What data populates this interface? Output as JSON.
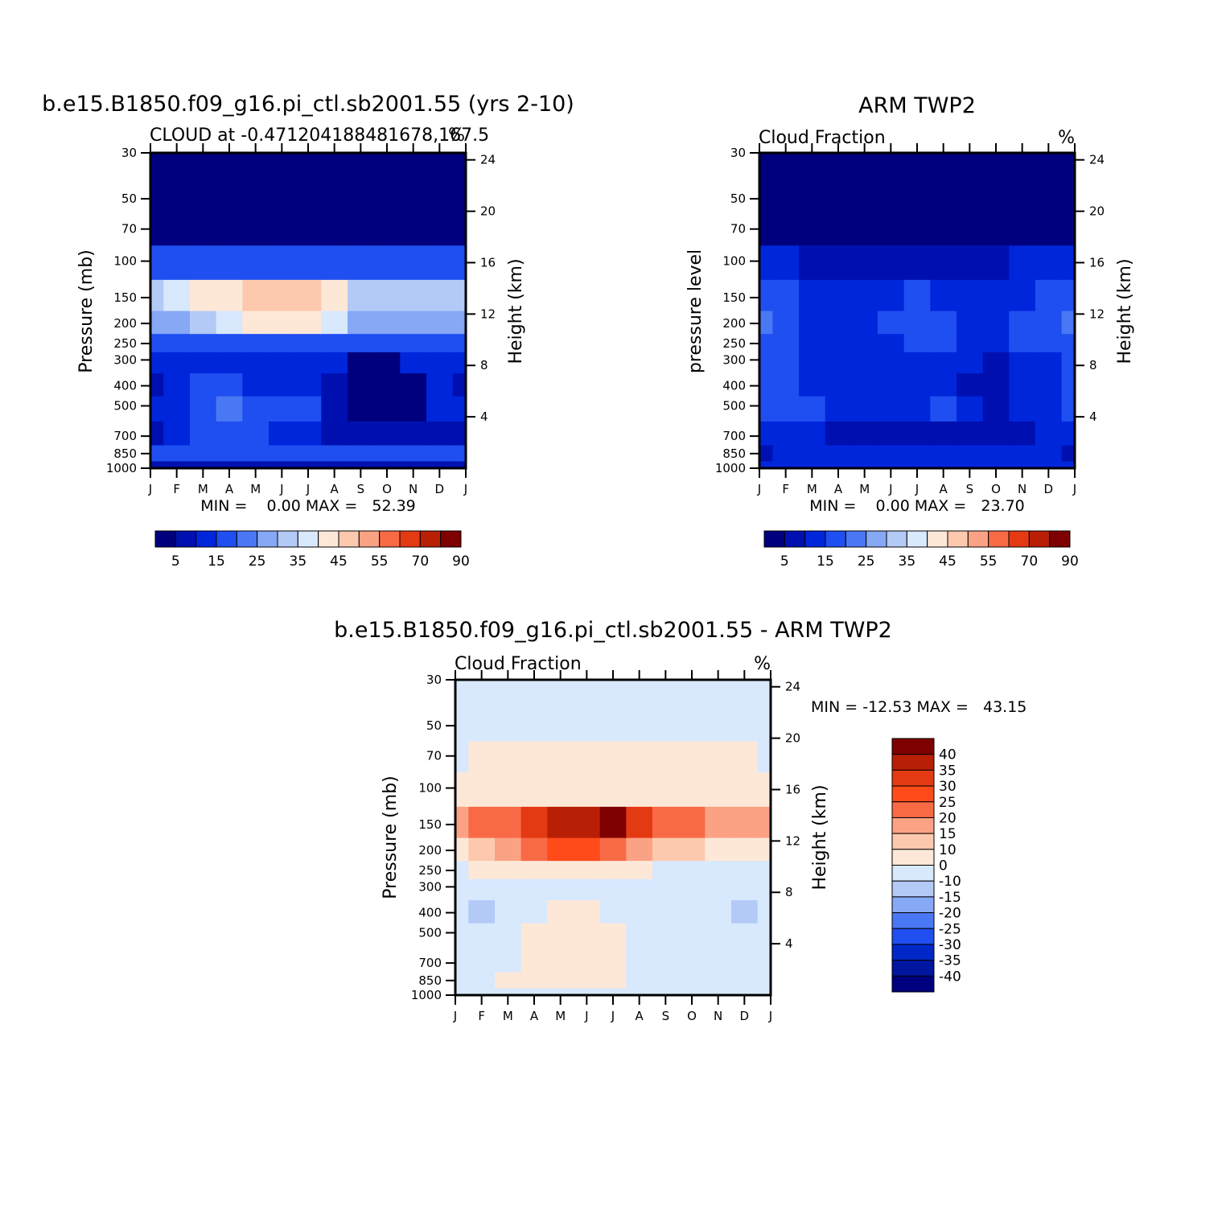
{
  "colors": {
    "sequential": [
      "#00007f",
      "#0010b0",
      "#0026dc",
      "#1f4ff0",
      "#4a78f5",
      "#86a8f5",
      "#b3caf7",
      "#d8e8fd",
      "#fde8d8",
      "#fcc9ae",
      "#fba284",
      "#f86a45",
      "#e43a14",
      "#b81f05",
      "#7f0000"
    ],
    "diverging": [
      "#00007f",
      "#0015a0",
      "#0027c8",
      "#1f4ff0",
      "#4a78f5",
      "#86a8f5",
      "#b3caf7",
      "#d8e8fd",
      "#fde8d8",
      "#fcc9ae",
      "#fba284",
      "#f86a45",
      "#ff4a1a",
      "#e43a14",
      "#b81f05",
      "#7f0000"
    ]
  },
  "panel_model": {
    "title": "b.e15.B1850.f09_g16.pi_ctl.sb2001.55 (yrs 2-10)",
    "subtitle_left": "CLOUD at -0.471204188481678,167.5",
    "subtitle_right": "%",
    "ylabel": "Pressure (mb)",
    "ylabel_right": "Height (km)",
    "min_max": "MIN =    0.00 MAX =   52.39"
  },
  "panel_obs": {
    "title": "ARM TWP2",
    "subtitle_left": "Cloud Fraction",
    "subtitle_right": "%",
    "ylabel": "pressure level",
    "ylabel_right": "Height (km)",
    "min_max": "MIN =    0.00 MAX =   23.70"
  },
  "panel_diff": {
    "title": "b.e15.B1850.f09_g16.pi_ctl.sb2001.55 - ARM TWP2",
    "subtitle_left": "Cloud Fraction",
    "subtitle_right": "%",
    "ylabel": "Pressure (mb)",
    "ylabel_right": "Height (km)",
    "min_max": "MIN = -12.53 MAX =   43.15"
  },
  "chart_data": [
    {
      "type": "heatmap",
      "title": "b.e15.B1850.f09_g16.pi_ctl.sb2001.55 (yrs 2-10)",
      "variable": "CLOUD",
      "units": "%",
      "x": [
        "J",
        "F",
        "M",
        "A",
        "M",
        "J",
        "J",
        "A",
        "S",
        "O",
        "N",
        "D",
        "J"
      ],
      "y": [
        1000,
        850,
        700,
        500,
        400,
        300,
        250,
        200,
        150,
        100,
        70,
        50,
        30
      ],
      "yticks_pressure": [
        30,
        50,
        70,
        100,
        150,
        200,
        250,
        300,
        400,
        500,
        700,
        850,
        1000
      ],
      "yticks_height_km": [
        4,
        8,
        12,
        16,
        20,
        24
      ],
      "ylog": true,
      "levels": [
        5,
        10,
        15,
        20,
        25,
        30,
        35,
        40,
        45,
        50,
        55,
        60,
        70,
        80,
        90
      ],
      "colorbar_labels": [
        "5",
        "15",
        "25",
        "35",
        "45",
        "55",
        "70",
        "90"
      ],
      "min": 0.0,
      "max": 52.39,
      "z": [
        [
          8,
          8,
          8,
          8,
          8,
          8,
          8,
          8,
          8,
          8,
          8,
          8,
          8
        ],
        [
          15,
          15,
          15,
          15,
          15,
          15,
          15,
          15,
          15,
          15,
          15,
          15,
          15
        ],
        [
          6,
          13,
          15,
          15,
          15,
          14,
          13,
          6,
          6,
          6,
          6,
          6,
          6
        ],
        [
          10,
          13,
          15,
          21,
          16,
          19,
          15,
          6,
          4,
          4,
          4,
          11,
          10
        ],
        [
          6,
          11,
          15,
          16,
          14,
          14,
          14,
          6,
          4,
          4,
          4,
          10,
          6
        ],
        [
          14,
          14,
          11,
          11,
          11,
          11,
          11,
          11,
          4,
          4,
          11,
          14,
          14
        ],
        [
          15,
          15,
          17,
          17,
          18,
          18,
          18,
          17,
          15,
          15,
          15,
          15,
          15
        ],
        [
          26,
          28,
          33,
          38,
          41,
          41,
          41,
          38,
          27,
          26,
          26,
          26,
          26
        ],
        [
          32,
          36,
          40,
          43,
          47,
          49,
          47,
          44,
          34,
          32,
          33,
          30,
          30
        ],
        [
          17,
          17,
          17,
          17,
          18,
          18,
          18,
          17,
          17,
          17,
          17,
          17,
          17
        ],
        [
          2,
          2,
          2,
          2,
          2,
          2,
          2,
          2,
          2,
          2,
          2,
          2,
          2
        ],
        [
          0,
          0,
          0,
          0,
          0,
          0,
          0,
          0,
          0,
          0,
          0,
          0,
          0
        ],
        [
          0,
          0,
          0,
          0,
          0,
          0,
          0,
          0,
          0,
          0,
          0,
          0,
          0
        ]
      ]
    },
    {
      "type": "heatmap",
      "title": "ARM TWP2",
      "variable": "Cloud Fraction",
      "units": "%",
      "x": [
        "J",
        "F",
        "M",
        "A",
        "M",
        "J",
        "J",
        "A",
        "S",
        "O",
        "N",
        "D",
        "J"
      ],
      "y": [
        1000,
        850,
        700,
        500,
        400,
        300,
        250,
        200,
        150,
        100,
        70,
        50,
        30
      ],
      "yticks_pressure": [
        30,
        50,
        70,
        100,
        150,
        200,
        250,
        300,
        400,
        500,
        700,
        850,
        1000
      ],
      "yticks_height_km": [
        4,
        8,
        12,
        16,
        20,
        24
      ],
      "ylog": true,
      "levels": [
        5,
        10,
        15,
        20,
        25,
        30,
        35,
        40,
        45,
        50,
        55,
        60,
        70,
        80,
        90
      ],
      "colorbar_labels": [
        "5",
        "15",
        "25",
        "35",
        "45",
        "55",
        "70",
        "90"
      ],
      "min": 0.0,
      "max": 23.7,
      "z": [
        [
          10,
          10,
          10,
          10,
          10,
          10,
          10,
          10,
          10,
          10,
          10,
          10,
          10
        ],
        [
          8,
          10,
          12,
          12,
          12,
          12,
          12,
          12,
          11,
          11,
          11,
          11,
          8
        ],
        [
          11,
          11,
          11,
          8,
          8,
          8,
          8,
          8,
          8,
          6,
          8,
          11,
          11
        ],
        [
          16,
          16,
          16,
          14,
          14,
          14,
          14,
          17,
          10,
          8,
          13,
          13,
          16
        ],
        [
          15,
          15,
          14,
          14,
          10,
          10,
          10,
          11,
          8,
          6,
          11,
          11,
          15
        ],
        [
          16,
          16,
          14,
          14,
          14,
          14,
          14,
          14,
          11,
          6,
          11,
          14,
          16
        ],
        [
          18,
          16,
          14,
          14,
          14,
          14,
          16,
          16,
          14,
          11,
          16,
          18,
          18
        ],
        [
          24,
          17,
          14,
          14,
          14,
          16,
          18,
          16,
          14,
          14,
          18,
          17,
          24
        ],
        [
          16,
          16,
          14,
          13,
          14,
          14,
          16,
          14,
          13,
          14,
          14,
          16,
          16
        ],
        [
          11,
          10,
          9,
          8,
          8,
          8,
          8,
          8,
          7,
          9,
          10,
          11,
          11
        ],
        [
          3,
          3,
          3,
          3,
          3,
          3,
          3,
          3,
          3,
          3,
          3,
          3,
          3
        ],
        [
          0,
          0,
          0,
          0,
          0,
          0,
          0,
          0,
          0,
          0,
          0,
          0,
          0
        ],
        [
          0,
          0,
          0,
          0,
          0,
          0,
          0,
          0,
          0,
          0,
          0,
          0,
          0
        ]
      ]
    },
    {
      "type": "heatmap",
      "title": "b.e15.B1850.f09_g16.pi_ctl.sb2001.55 - ARM TWP2",
      "variable": "Cloud Fraction",
      "units": "%",
      "x": [
        "J",
        "F",
        "M",
        "A",
        "M",
        "J",
        "J",
        "A",
        "S",
        "O",
        "N",
        "D",
        "J"
      ],
      "y": [
        1000,
        850,
        700,
        500,
        400,
        300,
        250,
        200,
        150,
        100,
        70,
        50,
        30
      ],
      "yticks_pressure": [
        30,
        50,
        70,
        100,
        150,
        200,
        250,
        300,
        400,
        500,
        700,
        850,
        1000
      ],
      "yticks_height_km": [
        4,
        8,
        12,
        16,
        20,
        24
      ],
      "ylog": true,
      "levels": [
        -40,
        -35,
        -30,
        -25,
        -20,
        -15,
        -10,
        0,
        10,
        15,
        20,
        25,
        30,
        35,
        40
      ],
      "colorbar_labels": [
        "40",
        "35",
        "30",
        "25",
        "20",
        "15",
        "10",
        "0",
        "-10",
        "-15",
        "-20",
        "-25",
        "-30",
        "-35",
        "-40"
      ],
      "min": -12.53,
      "max": 43.15,
      "z": [
        [
          -2,
          -2,
          -2,
          -2,
          -2,
          -2,
          -2,
          -2,
          -2,
          -2,
          -2,
          -2,
          -2
        ],
        [
          -3,
          -3,
          2,
          2,
          2,
          2,
          2,
          -3,
          -3,
          -3,
          -3,
          -3,
          -3
        ],
        [
          -5,
          -5,
          -3,
          4,
          5,
          5,
          3,
          -3,
          -5,
          -5,
          -5,
          -5,
          -5
        ],
        [
          -6,
          -6,
          -4,
          4,
          6,
          6,
          2,
          -5,
          -6,
          -6,
          -6,
          -6,
          -6
        ],
        [
          -5,
          -12,
          -5,
          -3,
          3,
          3,
          -2,
          -5,
          -5,
          -5,
          -5,
          -12,
          -5
        ],
        [
          -2,
          -2,
          -3,
          -3,
          -3,
          -3,
          -3,
          -3,
          -3,
          -3,
          -5,
          -3,
          -2
        ],
        [
          -3,
          2,
          5,
          4,
          4,
          4,
          3,
          2,
          -2,
          -3,
          -3,
          -3,
          -3
        ],
        [
          2,
          12,
          16,
          22,
          27,
          25,
          23,
          17,
          11,
          11,
          8,
          8,
          2
        ],
        [
          16,
          20,
          24,
          31,
          35,
          38,
          43,
          32,
          24,
          20,
          19,
          18,
          16
        ],
        [
          6,
          8,
          9,
          9,
          9,
          9,
          9,
          9,
          9,
          9,
          9,
          8,
          6
        ],
        [
          -1,
          1,
          1,
          1,
          1,
          1,
          1,
          1,
          1,
          1,
          1,
          1,
          -1
        ],
        [
          -1,
          -1,
          -1,
          -1,
          -1,
          -1,
          -1,
          -1,
          -1,
          -1,
          -1,
          -1,
          -1
        ],
        [
          -1,
          -1,
          -1,
          -1,
          -1,
          -1,
          -1,
          -1,
          -1,
          -1,
          -1,
          -1,
          -1
        ]
      ]
    }
  ]
}
